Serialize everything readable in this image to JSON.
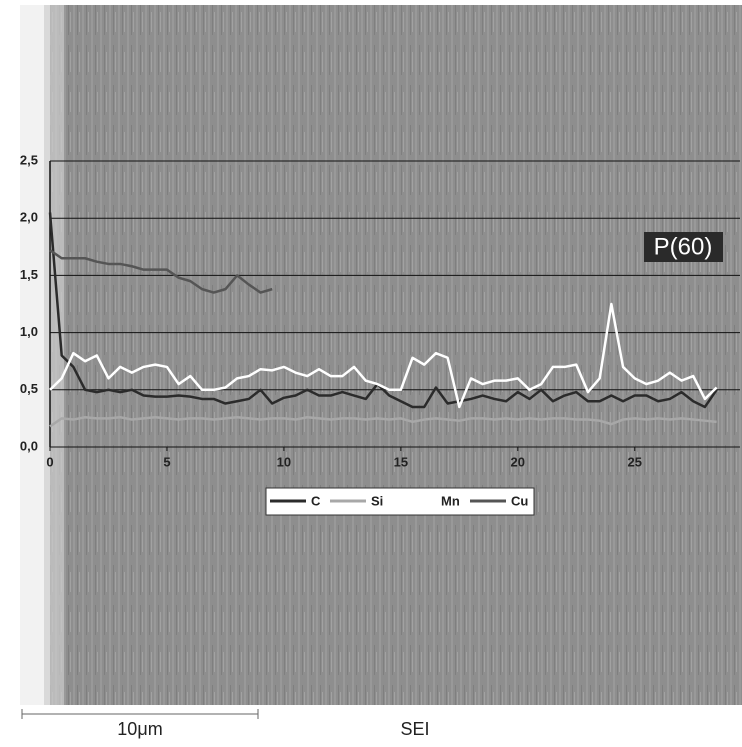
{
  "chart_data": {
    "type": "line",
    "annotations": [
      "P(60)"
    ],
    "x": [
      0,
      0.5,
      1,
      1.5,
      2,
      2.5,
      3,
      3.5,
      4,
      4.5,
      5,
      5.5,
      6,
      6.5,
      7,
      7.5,
      8,
      8.5,
      9,
      9.5,
      10,
      10.5,
      11,
      11.5,
      12,
      12.5,
      13,
      13.5,
      14,
      14.5,
      15,
      15.5,
      16,
      16.5,
      17,
      17.5,
      18,
      18.5,
      19,
      19.5,
      20,
      20.5,
      21,
      21.5,
      22,
      22.5,
      23,
      23.5,
      24,
      24.5,
      25,
      25.5,
      26,
      26.5,
      27,
      27.5,
      28,
      28.5
    ],
    "series": [
      {
        "name": "C",
        "color": "#2b2b2b",
        "values": [
          2.05,
          0.8,
          0.7,
          0.5,
          0.48,
          0.5,
          0.48,
          0.5,
          0.45,
          0.44,
          0.44,
          0.45,
          0.44,
          0.42,
          0.42,
          0.38,
          0.4,
          0.42,
          0.5,
          0.38,
          0.43,
          0.45,
          0.5,
          0.45,
          0.45,
          0.48,
          0.45,
          0.42,
          0.55,
          0.45,
          0.4,
          0.35,
          0.35,
          0.52,
          0.38,
          0.4,
          0.42,
          0.45,
          0.42,
          0.4,
          0.48,
          0.42,
          0.5,
          0.4,
          0.45,
          0.48,
          0.4,
          0.4,
          0.45,
          0.4,
          0.45,
          0.45,
          0.4,
          0.42,
          0.48,
          0.4,
          0.35,
          0.5
        ]
      },
      {
        "name": "Si",
        "color": "#a8a8a8",
        "values": [
          0.18,
          0.25,
          0.24,
          0.26,
          0.25,
          0.25,
          0.26,
          0.24,
          0.25,
          0.26,
          0.25,
          0.24,
          0.25,
          0.25,
          0.24,
          0.25,
          0.26,
          0.25,
          0.24,
          0.25,
          0.25,
          0.24,
          0.26,
          0.25,
          0.24,
          0.25,
          0.25,
          0.24,
          0.25,
          0.24,
          0.25,
          0.22,
          0.24,
          0.25,
          0.24,
          0.23,
          0.25,
          0.25,
          0.24,
          0.25,
          0.24,
          0.25,
          0.24,
          0.25,
          0.25,
          0.24,
          0.24,
          0.23,
          0.2,
          0.24,
          0.25,
          0.24,
          0.25,
          0.24,
          0.25,
          0.24,
          0.23,
          0.22
        ]
      },
      {
        "name": "Mn",
        "color": "#ffffff",
        "values": [
          0.5,
          0.6,
          0.82,
          0.75,
          0.8,
          0.6,
          0.7,
          0.65,
          0.7,
          0.72,
          0.7,
          0.55,
          0.62,
          0.5,
          0.5,
          0.52,
          0.6,
          0.62,
          0.68,
          0.67,
          0.7,
          0.65,
          0.62,
          0.68,
          0.62,
          0.62,
          0.7,
          0.58,
          0.55,
          0.5,
          0.5,
          0.78,
          0.72,
          0.82,
          0.78,
          0.35,
          0.6,
          0.55,
          0.58,
          0.58,
          0.6,
          0.5,
          0.55,
          0.7,
          0.7,
          0.72,
          0.48,
          0.6,
          1.25,
          0.7,
          0.6,
          0.55,
          0.58,
          0.65,
          0.58,
          0.62,
          0.42,
          0.52
        ]
      },
      {
        "name": "Cu",
        "color": "#555555",
        "values": [
          1.72,
          1.65,
          1.65,
          1.65,
          1.62,
          1.6,
          1.6,
          1.58,
          1.55,
          1.55,
          1.55,
          1.48,
          1.45,
          1.38,
          1.35,
          1.38,
          1.5,
          1.42,
          1.35,
          1.38,
          null,
          null,
          null,
          null,
          null,
          null,
          null,
          null,
          null,
          null,
          null,
          null,
          null,
          null,
          null,
          null,
          null,
          null,
          null,
          null,
          null,
          null,
          null,
          null,
          null,
          null,
          null,
          null,
          null,
          null,
          null,
          null,
          null,
          null,
          null,
          null,
          null,
          null
        ]
      }
    ],
    "xlim": [
      0,
      29.5
    ],
    "xticks": [
      0,
      5,
      10,
      15,
      20,
      25
    ],
    "ylim": [
      0,
      2.5
    ],
    "yticks": [
      {
        "value": 0,
        "label": "0,0"
      },
      {
        "value": 0.5,
        "label": "0,5"
      },
      {
        "value": 1,
        "label": "1,0"
      },
      {
        "value": 1.5,
        "label": "1,5"
      },
      {
        "value": 2,
        "label": "2,0"
      },
      {
        "value": 2.5,
        "label": "2,5"
      }
    ],
    "grid": true
  },
  "image": {
    "scale_bar": "10μm",
    "detector": "SEI"
  }
}
